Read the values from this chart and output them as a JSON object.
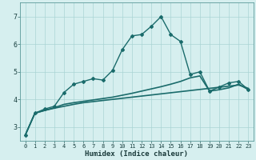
{
  "xlabel": "Humidex (Indice chaleur)",
  "background_color": "#d6efef",
  "grid_color": "#aad4d4",
  "line_color": "#1a6b6b",
  "xlim": [
    -0.5,
    23.5
  ],
  "ylim": [
    2.5,
    7.5
  ],
  "xticks": [
    0,
    1,
    2,
    3,
    4,
    5,
    6,
    7,
    8,
    9,
    10,
    11,
    12,
    13,
    14,
    15,
    16,
    17,
    18,
    19,
    20,
    21,
    22,
    23
  ],
  "yticks": [
    3,
    4,
    5,
    6,
    7
  ],
  "series": [
    {
      "x": [
        0,
        1,
        2,
        3,
        4,
        5,
        6,
        7,
        8,
        9,
        10,
        11,
        12,
        13,
        14,
        15,
        16,
        17,
        18,
        19,
        20,
        21,
        22,
        23
      ],
      "y": [
        2.7,
        3.5,
        3.6,
        3.68,
        3.75,
        3.82,
        3.88,
        3.92,
        3.96,
        4.0,
        4.04,
        4.08,
        4.12,
        4.16,
        4.2,
        4.24,
        4.28,
        4.32,
        4.36,
        4.4,
        4.44,
        4.48,
        4.52,
        4.4
      ],
      "marker": false,
      "linewidth": 1.2
    },
    {
      "x": [
        0,
        1,
        2,
        3,
        4,
        5,
        6,
        7,
        8,
        9,
        10,
        11,
        12,
        13,
        14,
        15,
        16,
        17,
        18,
        19,
        20,
        21,
        22,
        23
      ],
      "y": [
        2.7,
        3.5,
        3.6,
        3.7,
        3.82,
        3.88,
        3.93,
        3.98,
        4.03,
        4.08,
        4.15,
        4.22,
        4.3,
        4.38,
        4.46,
        4.55,
        4.65,
        4.78,
        4.85,
        4.3,
        4.35,
        4.42,
        4.55,
        4.35
      ],
      "marker": false,
      "linewidth": 1.2
    },
    {
      "x": [
        0,
        1,
        2,
        3,
        4,
        5,
        6,
        7,
        8,
        9,
        10,
        11,
        12,
        13,
        14,
        15,
        16,
        17,
        18,
        19,
        20,
        21,
        22,
        23
      ],
      "y": [
        2.7,
        3.5,
        3.65,
        3.75,
        4.25,
        4.55,
        4.65,
        4.75,
        4.7,
        5.05,
        5.8,
        6.3,
        6.35,
        6.65,
        7.0,
        6.35,
        6.1,
        4.9,
        5.0,
        4.3,
        4.45,
        4.6,
        4.65,
        4.35
      ],
      "marker": true,
      "linewidth": 1.0
    }
  ]
}
